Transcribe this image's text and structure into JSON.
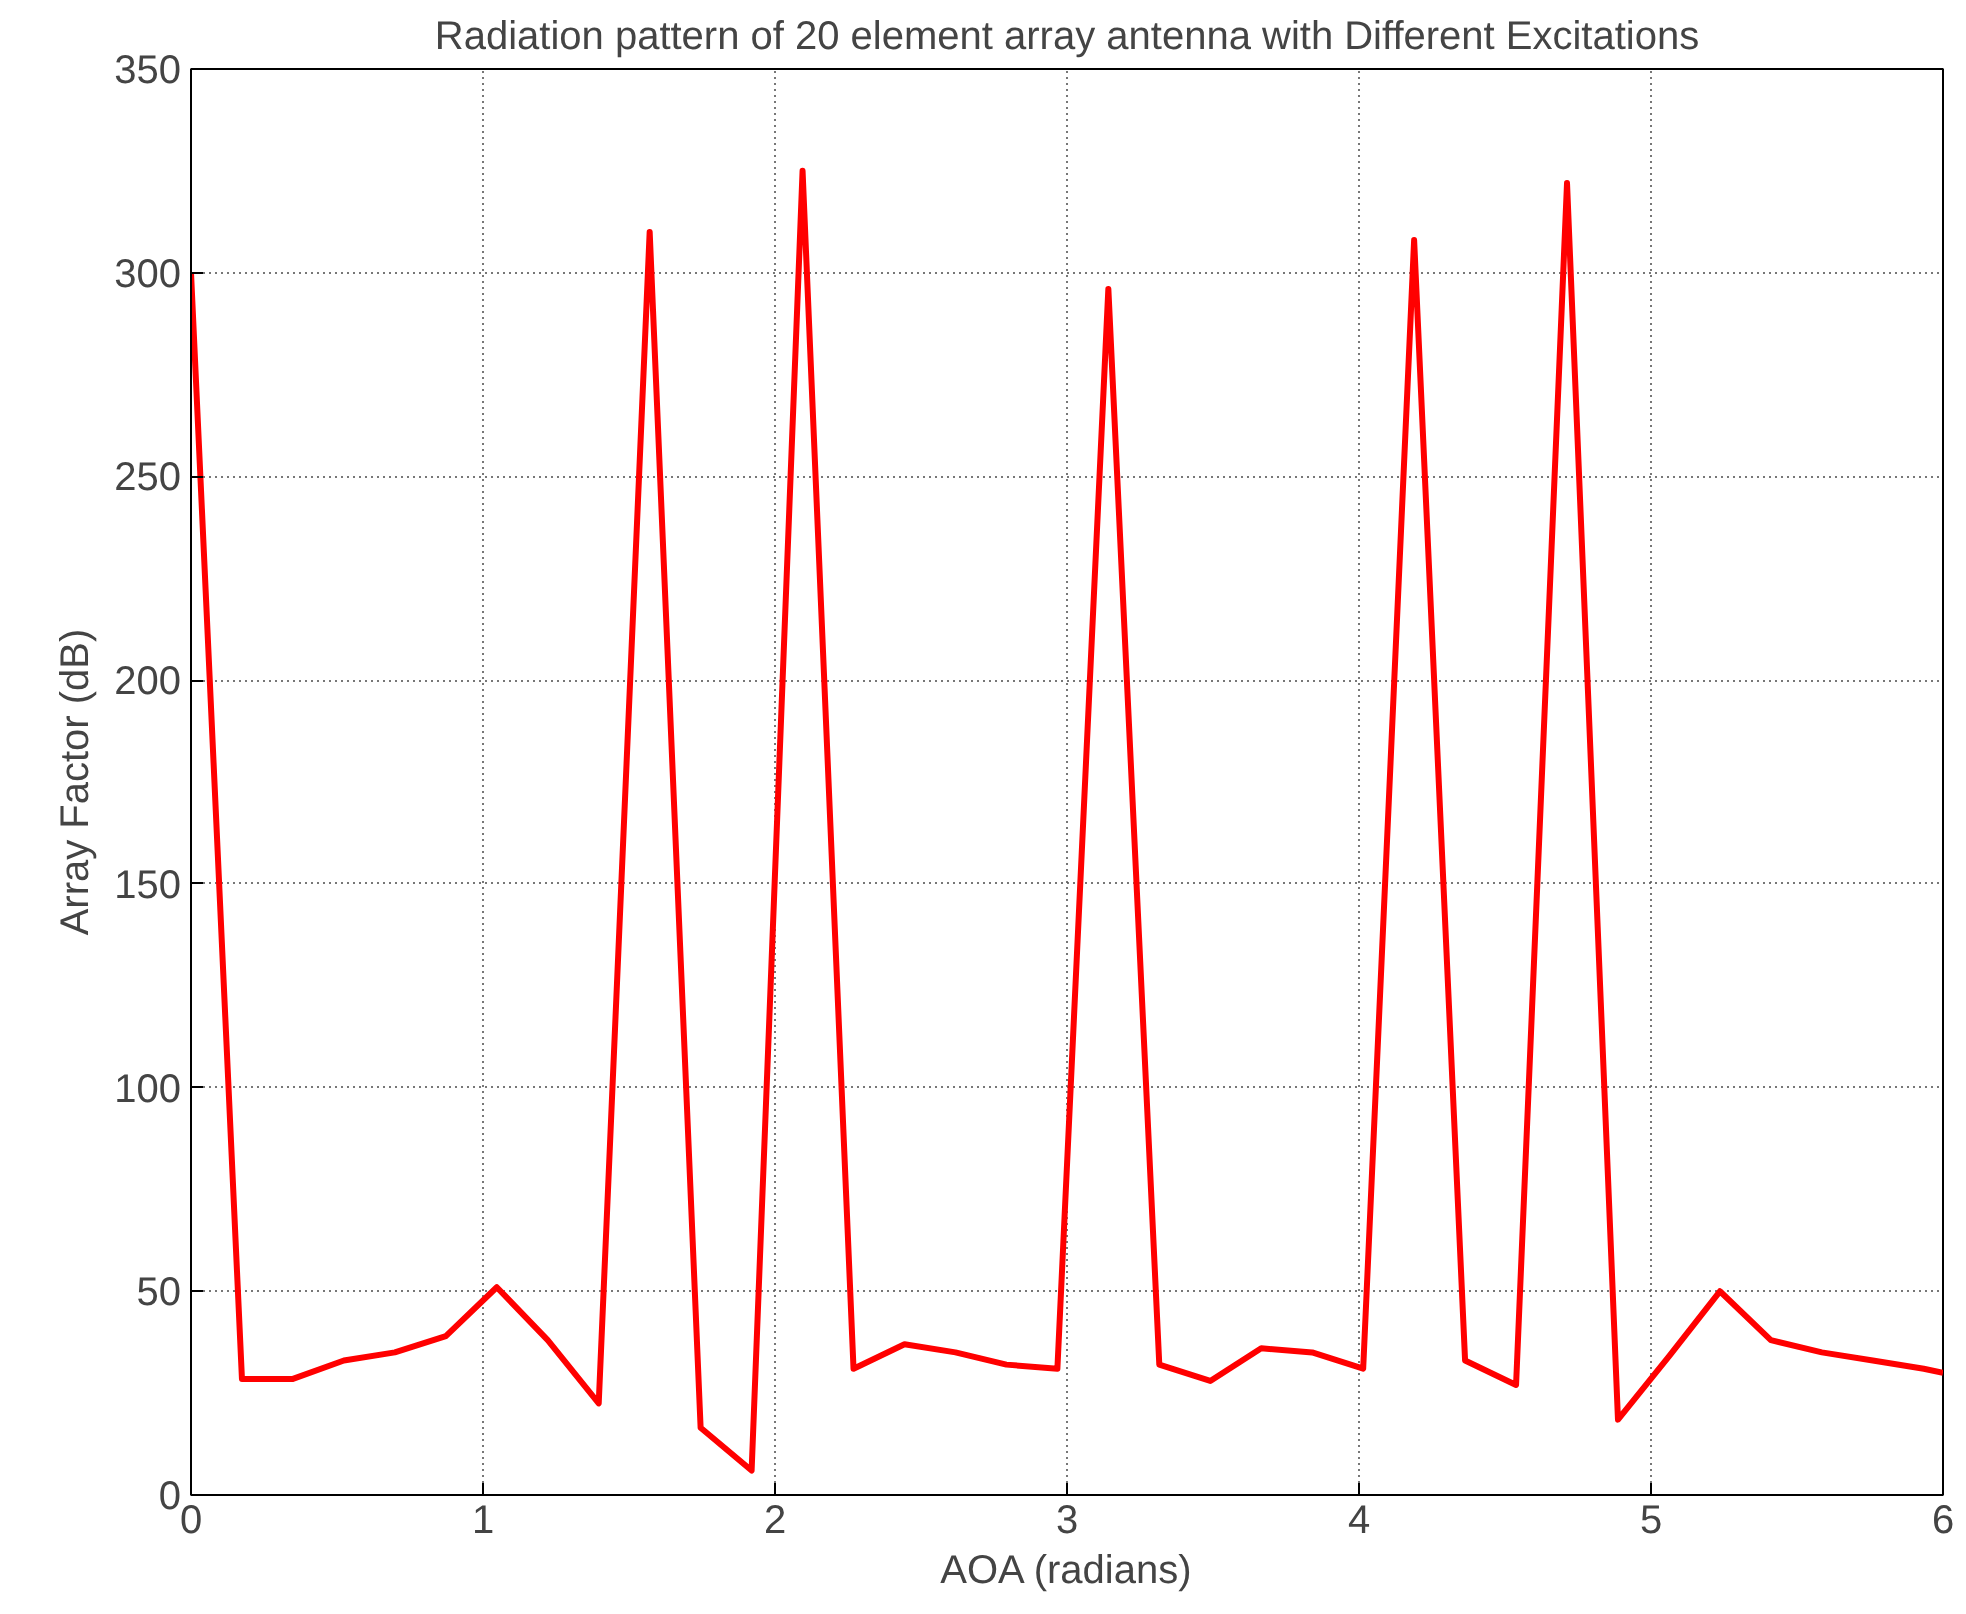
{
  "chart_data": {
    "type": "line",
    "title": "Radiation pattern of 20 element array antenna with Different Excitations",
    "xlabel": "AOA (radians)",
    "ylabel": "Array Factor (dB)",
    "x": [
      0,
      0.1745,
      0.349,
      0.5236,
      0.6981,
      0.8727,
      1.0472,
      1.2217,
      1.3963,
      1.5708,
      1.7453,
      1.9199,
      2.0944,
      2.2689,
      2.4435,
      2.618,
      2.7925,
      2.9671,
      3.1416,
      3.3161,
      3.4907,
      3.6652,
      3.8397,
      4.0143,
      4.1888,
      4.3633,
      4.5379,
      4.7124,
      4.8869,
      5.0615,
      5.236,
      5.4105,
      5.5851,
      5.7596,
      5.9341,
      6.0
    ],
    "series": [
      {
        "color": "#ff0000",
        "values": [
          300,
          28.5,
          28.5,
          33,
          35,
          39,
          51,
          38,
          22.5,
          310,
          16.5,
          6,
          325,
          31,
          37,
          35,
          32,
          31,
          296,
          32,
          28,
          36,
          35,
          31,
          308,
          33,
          27,
          322,
          18.5,
          34,
          50,
          38,
          35,
          33,
          31,
          30
        ]
      }
    ],
    "xlim": [
      0,
      6
    ],
    "ylim": [
      0,
      350
    ],
    "xticks": [
      0,
      1,
      2,
      3,
      4,
      5,
      6
    ],
    "yticks": [
      0,
      50,
      100,
      150,
      200,
      250,
      300,
      350
    ],
    "grid": true,
    "marker": "none",
    "line_style": "solid"
  }
}
